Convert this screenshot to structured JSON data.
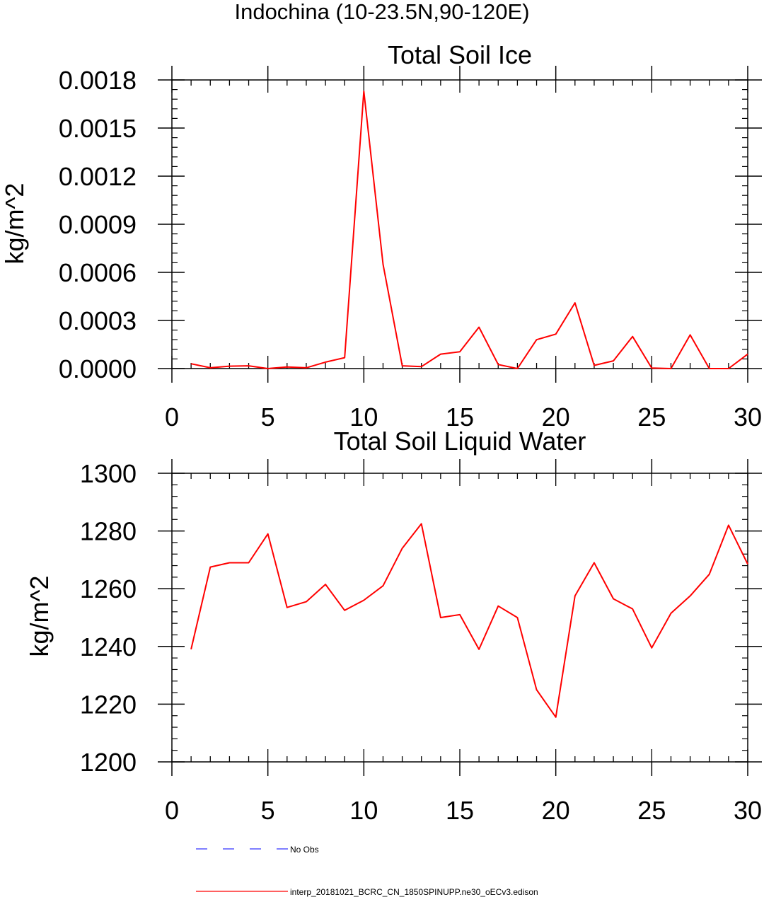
{
  "figure": {
    "suptitle": "Indochina (10-23.5N,90-120E)"
  },
  "chart_data": [
    {
      "type": "line",
      "title": "Total Soil Ice",
      "xlabel": "",
      "ylabel": "kg/m^2",
      "xlim": [
        0,
        30
      ],
      "ylim": [
        0,
        0.0018
      ],
      "xticks": [
        0,
        5,
        10,
        15,
        20,
        25,
        30
      ],
      "yticks": [
        0,
        0.0003,
        0.0006,
        0.0009,
        0.0012,
        0.0015,
        0.0018
      ],
      "ytick_labels": [
        "0.0000",
        "0.0003",
        "0.0006",
        "0.0009",
        "0.0012",
        "0.0015",
        "0.0018"
      ],
      "grid": false,
      "series": [
        {
          "name": "interp_20181021_BCRC_CN_1850SPINUPP.ne30_oECv3.edison",
          "color": "#ff0000",
          "x": [
            1,
            2,
            3,
            4,
            5,
            6,
            7,
            8,
            9,
            10,
            11,
            12,
            13,
            14,
            15,
            16,
            17,
            18,
            19,
            20,
            21,
            22,
            23,
            24,
            25,
            26,
            27,
            28,
            29,
            30
          ],
          "values": [
            3e-05,
            5e-06,
            1.5e-05,
            1.7e-05,
            0.0,
            1e-05,
            5e-06,
            4e-05,
            6.8e-05,
            0.00173,
            0.00065,
            1.7e-05,
            1.2e-05,
            9e-05,
            0.000105,
            0.000258,
            2.5e-05,
            0.0,
            0.00018,
            0.000215,
            0.00041,
            2e-05,
            4.8e-05,
            0.0002,
            3e-06,
            0.0,
            0.00021,
            0.0,
            0.0,
            9e-05
          ]
        }
      ]
    },
    {
      "type": "line",
      "title": "Total Soil Liquid Water",
      "xlabel": "",
      "ylabel": "kg/m^2",
      "xlim": [
        0,
        30
      ],
      "ylim": [
        1200,
        1300
      ],
      "xticks": [
        0,
        5,
        10,
        15,
        20,
        25,
        30
      ],
      "yticks": [
        1200,
        1220,
        1240,
        1260,
        1280,
        1300
      ],
      "ytick_labels": [
        "1200",
        "1220",
        "1240",
        "1260",
        "1280",
        "1300"
      ],
      "grid": false,
      "series": [
        {
          "name": "interp_20181021_BCRC_CN_1850SPINUPP.ne30_oECv3.edison",
          "color": "#ff0000",
          "x": [
            1,
            2,
            3,
            4,
            5,
            6,
            7,
            8,
            9,
            10,
            11,
            12,
            13,
            14,
            15,
            16,
            17,
            18,
            19,
            20,
            21,
            22,
            23,
            24,
            25,
            26,
            27,
            28,
            29,
            30
          ],
          "values": [
            1239,
            1267.5,
            1269,
            1269,
            1279,
            1253.5,
            1255.5,
            1261.5,
            1252.5,
            1256,
            1261,
            1274,
            1282.5,
            1250,
            1251,
            1239,
            1254,
            1250,
            1225,
            1215.5,
            1257.5,
            1269,
            1256.5,
            1253,
            1239.5,
            1251.5,
            1257.5,
            1265,
            1282,
            1268.5
          ]
        }
      ]
    }
  ],
  "legend": {
    "placement": "bottom",
    "entries": [
      {
        "label": "No Obs",
        "color": "#3333ff",
        "style": "dashed"
      },
      {
        "label": "interp_20181021_BCRC_CN_1850SPINUPP.ne30_oECv3.edison",
        "color": "#ff0000",
        "style": "solid"
      }
    ]
  }
}
